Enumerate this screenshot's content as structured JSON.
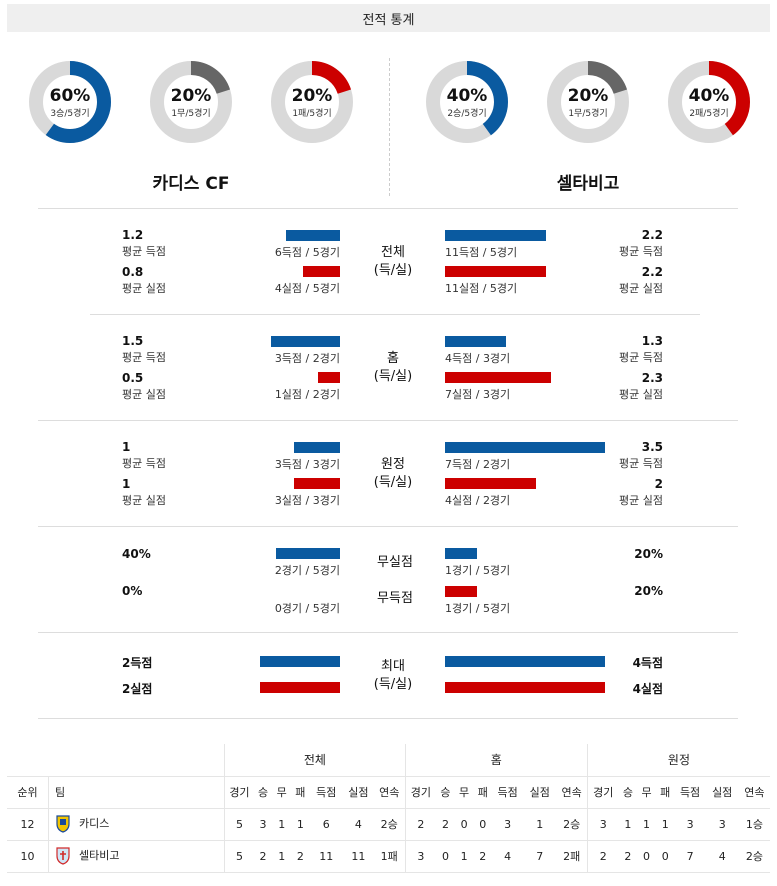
{
  "header": {
    "title": "전적 통계"
  },
  "colors": {
    "blue": "#0a5aa0",
    "red": "#cc0000",
    "gray": "#666666",
    "track": "#d9d9d9"
  },
  "teams": {
    "home": "카디스 CF",
    "away": "셀타비고"
  },
  "donuts": {
    "home_win": {
      "pct": "60%",
      "sub": "3승/5경기",
      "value": 0.6,
      "color": "#0a5aa0"
    },
    "home_draw": {
      "pct": "20%",
      "sub": "1무/5경기",
      "value": 0.2,
      "color": "#666666"
    },
    "home_loss": {
      "pct": "20%",
      "sub": "1패/5경기",
      "value": 0.2,
      "color": "#cc0000"
    },
    "away_win": {
      "pct": "40%",
      "sub": "2승/5경기",
      "value": 0.4,
      "color": "#0a5aa0"
    },
    "away_draw": {
      "pct": "20%",
      "sub": "1무/5경기",
      "value": 0.2,
      "color": "#666666"
    },
    "away_loss": {
      "pct": "40%",
      "sub": "2패/5경기",
      "value": 0.4,
      "color": "#cc0000"
    }
  },
  "labels": {
    "avg_scored": "평균 득점",
    "avg_conceded": "평균 실점"
  },
  "sections": {
    "overall": {
      "center1": "전체",
      "center2": "(득/실)",
      "home_scored": {
        "value": "1.2",
        "cap": "6득점 / 5경기",
        "fill": 0.34
      },
      "home_conceded": {
        "value": "0.8",
        "cap": "4실점 / 5경기",
        "fill": 0.23
      },
      "away_scored": {
        "value": "2.2",
        "cap": "11득점 / 5경기",
        "fill": 0.63
      },
      "away_conceded": {
        "value": "2.2",
        "cap": "11실점 / 5경기",
        "fill": 0.63
      }
    },
    "home": {
      "center1": "홈",
      "center2": "(득/실)",
      "home_scored": {
        "value": "1.5",
        "cap": "3득점 / 2경기",
        "fill": 0.43
      },
      "home_conceded": {
        "value": "0.5",
        "cap": "1실점 / 2경기",
        "fill": 0.14
      },
      "away_scored": {
        "value": "1.3",
        "cap": "4득점 / 3경기",
        "fill": 0.38
      },
      "away_conceded": {
        "value": "2.3",
        "cap": "7실점 / 3경기",
        "fill": 0.66
      }
    },
    "away": {
      "center1": "원정",
      "center2": "(득/실)",
      "home_scored": {
        "value": "1",
        "cap": "3득점 / 3경기",
        "fill": 0.29
      },
      "home_conceded": {
        "value": "1",
        "cap": "3실점 / 3경기",
        "fill": 0.29
      },
      "away_scored": {
        "value": "3.5",
        "cap": "7득점 / 2경기",
        "fill": 1.0
      },
      "away_conceded": {
        "value": "2",
        "cap": "4실점 / 2경기",
        "fill": 0.57
      }
    },
    "clean": {
      "label_clean": "무실점",
      "label_blank": "무득점",
      "home_clean": {
        "value": "40%",
        "cap": "2경기 / 5경기",
        "fill": 0.4
      },
      "home_blank": {
        "value": "0%",
        "cap": "0경기 / 5경기",
        "fill": 0.0
      },
      "away_clean": {
        "value": "20%",
        "cap": "1경기 / 5경기",
        "fill": 0.2
      },
      "away_blank": {
        "value": "20%",
        "cap": "1경기 / 5경기",
        "fill": 0.2
      }
    },
    "max": {
      "center1": "최대",
      "center2": "(득/실)",
      "home_scored": {
        "value": "2득점",
        "fill": 0.5
      },
      "home_conceded": {
        "value": "2실점",
        "fill": 0.5
      },
      "away_scored": {
        "value": "4득점",
        "fill": 1.0
      },
      "away_conceded": {
        "value": "4실점",
        "fill": 1.0
      }
    }
  },
  "table": {
    "groups": [
      "전체",
      "홈",
      "원정"
    ],
    "col_rank": "순위",
    "col_team": "팀",
    "sub_headers": [
      "경기",
      "승",
      "무",
      "패",
      "득점",
      "실점",
      "연속"
    ],
    "rows": [
      {
        "rank": "12",
        "team": "카디스",
        "overall": [
          "5",
          "3",
          "1",
          "1",
          "6",
          "4",
          "2승"
        ],
        "home": [
          "2",
          "2",
          "0",
          "0",
          "3",
          "1",
          "2승"
        ],
        "away": [
          "3",
          "1",
          "1",
          "1",
          "3",
          "3",
          "1승"
        ]
      },
      {
        "rank": "10",
        "team": "셀타비고",
        "overall": [
          "5",
          "2",
          "1",
          "2",
          "11",
          "11",
          "1패"
        ],
        "home": [
          "3",
          "0",
          "1",
          "2",
          "4",
          "7",
          "2패"
        ],
        "away": [
          "2",
          "2",
          "0",
          "0",
          "7",
          "4",
          "2승"
        ]
      }
    ]
  }
}
